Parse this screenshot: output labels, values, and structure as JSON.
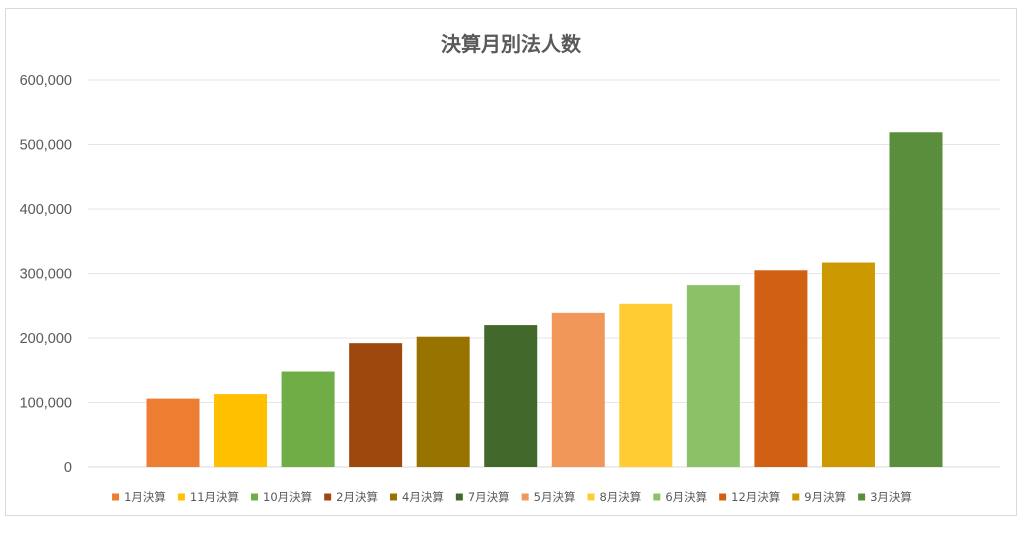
{
  "chart_data": {
    "type": "bar",
    "title": "決算月別法人数",
    "xlabel": "",
    "ylabel": "",
    "ylim": [
      0,
      600000
    ],
    "yticks": [
      0,
      100000,
      200000,
      300000,
      400000,
      500000,
      600000
    ],
    "ytick_labels": [
      "0",
      "100,000",
      "200,000",
      "300,000",
      "400,000",
      "500,000",
      "600,000"
    ],
    "grid": true,
    "legend_position": "bottom",
    "series": [
      {
        "name": "1月決算",
        "value": 106000,
        "color": "#ED7D31"
      },
      {
        "name": "11月決算",
        "value": 113000,
        "color": "#FFC000"
      },
      {
        "name": "10月決算",
        "value": 148000,
        "color": "#70AD47"
      },
      {
        "name": "2月決算",
        "value": 192000,
        "color": "#9E480E"
      },
      {
        "name": "4月決算",
        "value": 202000,
        "color": "#997300"
      },
      {
        "name": "7月決算",
        "value": 220000,
        "color": "#43682B"
      },
      {
        "name": "5月決算",
        "value": 239000,
        "color": "#F1975A"
      },
      {
        "name": "8月決算",
        "value": 253000,
        "color": "#FFCD33"
      },
      {
        "name": "6月決算",
        "value": 282000,
        "color": "#8CC168"
      },
      {
        "name": "12月決算",
        "value": 305000,
        "color": "#D26012"
      },
      {
        "name": "9月決算",
        "value": 317000,
        "color": "#CC9A00"
      },
      {
        "name": "3月決算",
        "value": 519000,
        "color": "#5B8E3C"
      }
    ]
  }
}
